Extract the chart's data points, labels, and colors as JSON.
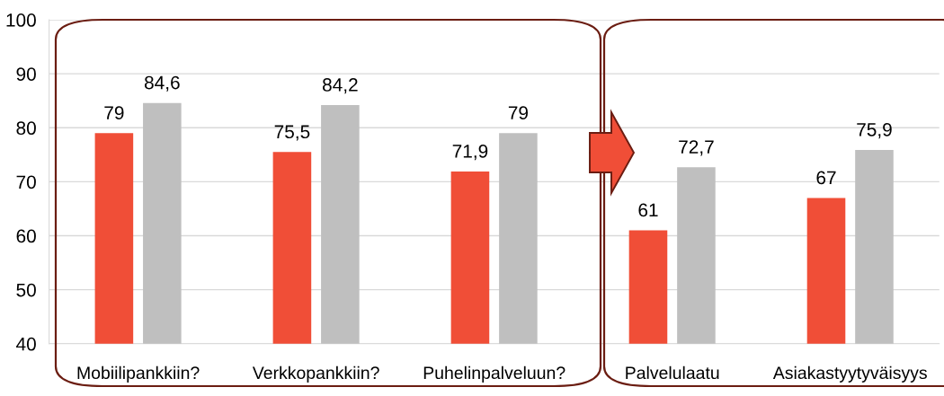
{
  "chart_data": {
    "type": "bar",
    "categories": [
      "Mobiilipankkiin?",
      "Verkkopankkiin?",
      "Puhelinpalveluun?",
      "Palvelulaatu",
      "Asiakastyytyväisyys"
    ],
    "series": [
      {
        "color": "#f04e37",
        "values": [
          79,
          75.5,
          71.9,
          61,
          67
        ],
        "value_labels": [
          "79",
          "75,5",
          "71,9",
          "61",
          "67"
        ]
      },
      {
        "color": "#bfbfbf",
        "values": [
          84.6,
          84.2,
          79,
          72.7,
          75.9
        ],
        "value_labels": [
          "84,6",
          "84,2",
          "79",
          "72,7",
          "75,9"
        ]
      }
    ],
    "ylim": [
      40,
      100
    ],
    "yticks": [
      40,
      50,
      60,
      70,
      80,
      90,
      100
    ],
    "grid": "y",
    "legend": false
  }
}
